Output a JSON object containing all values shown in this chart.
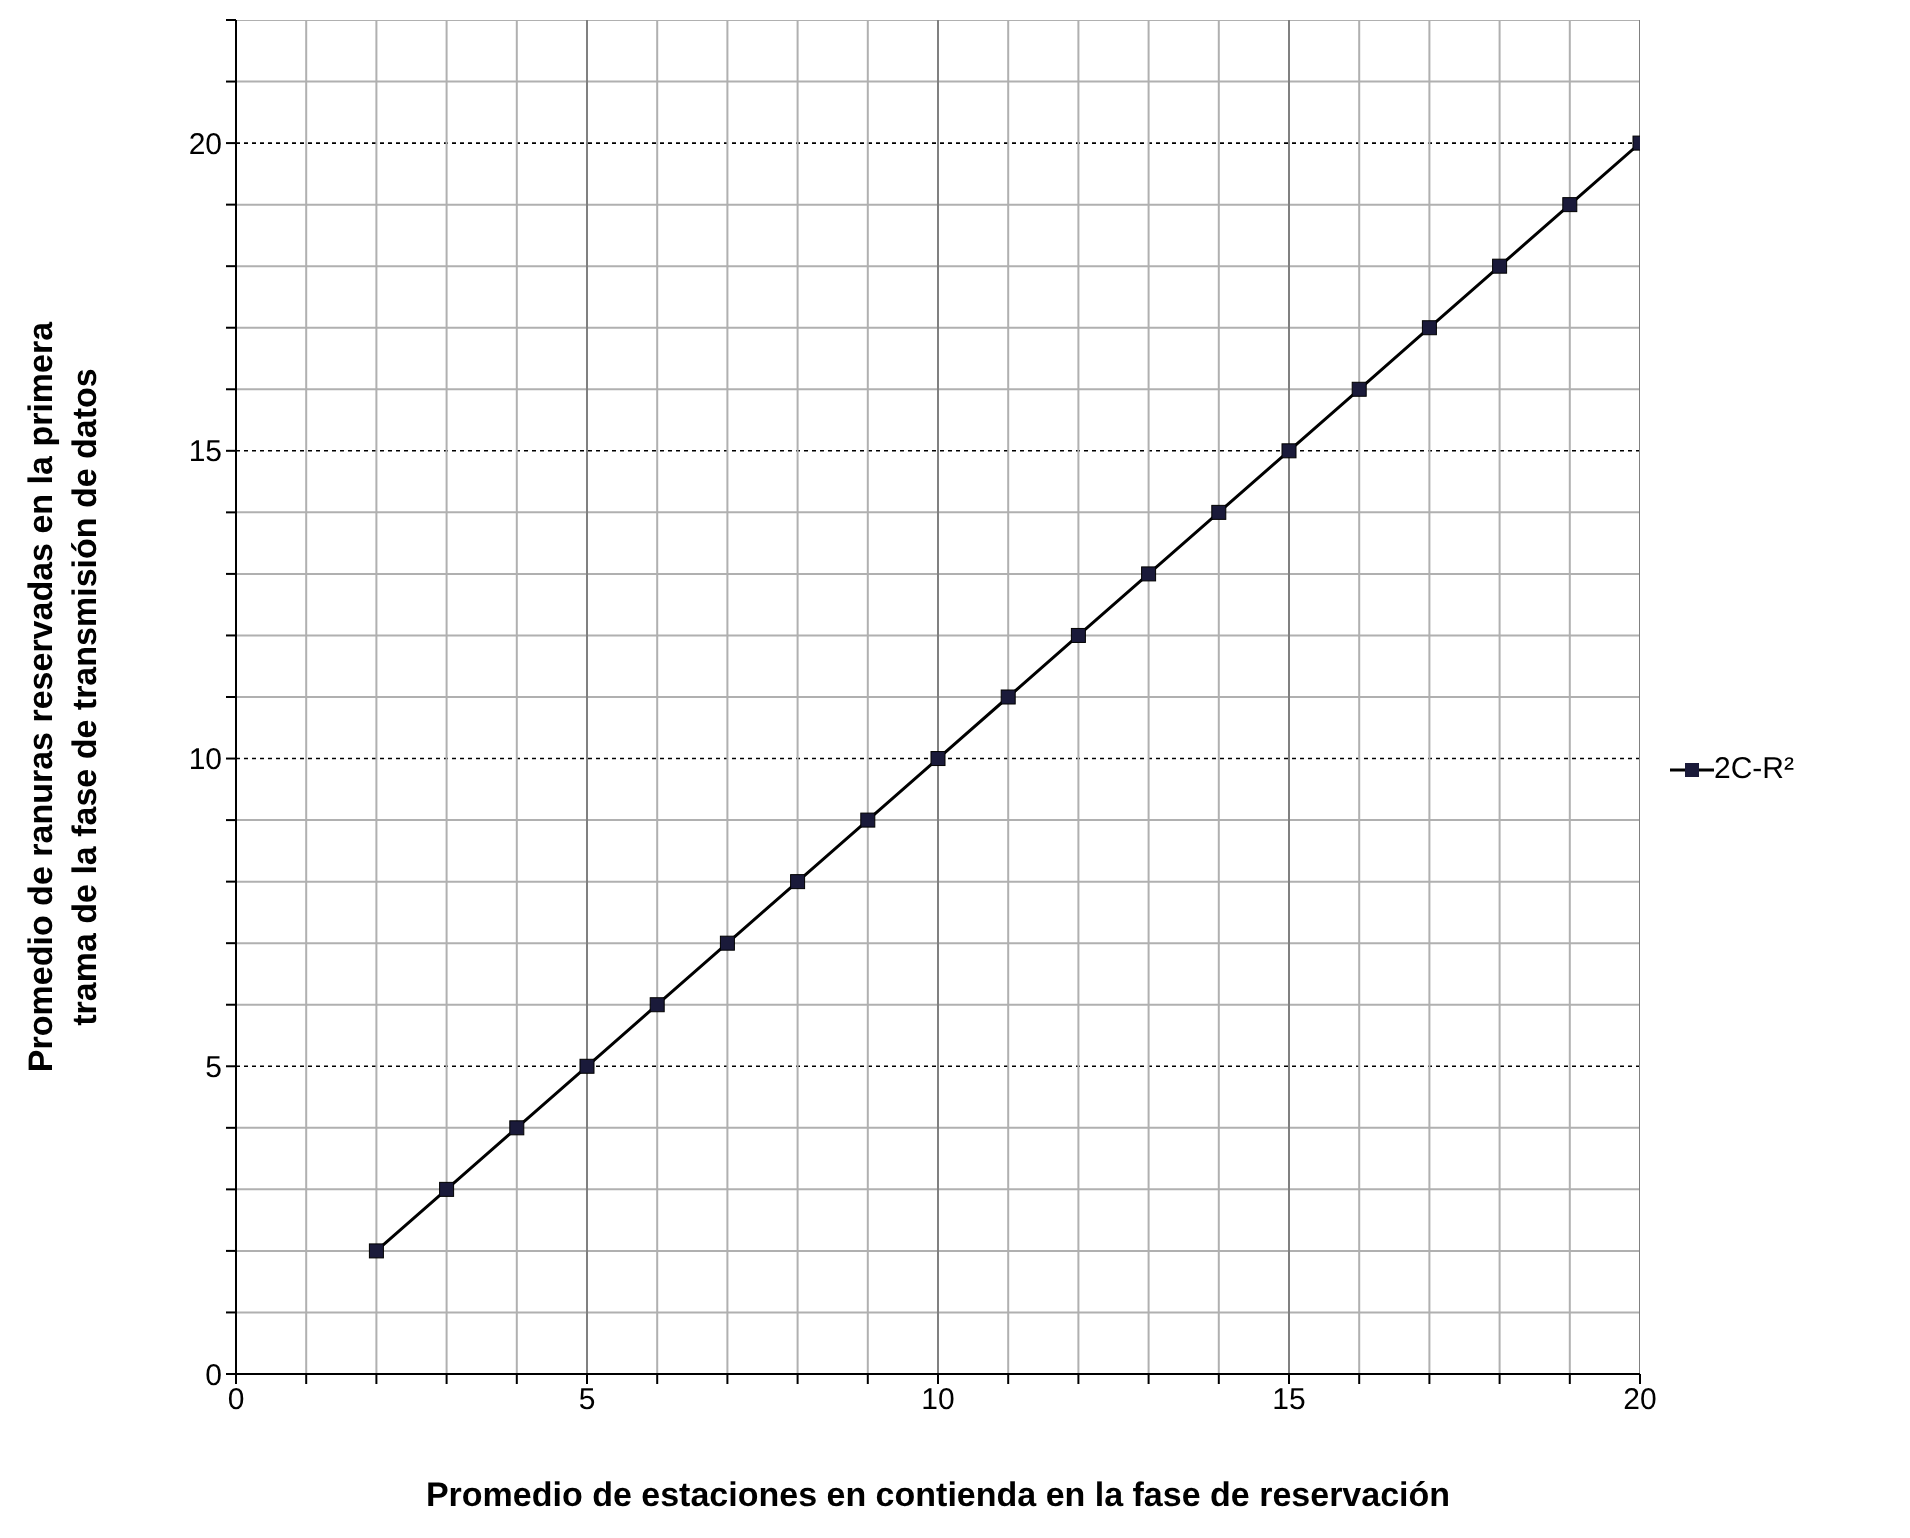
{
  "chart_data": {
    "type": "line",
    "xlabel": "Promedio de estaciones en contienda en la fase de reservación",
    "ylabel": "Promedio de ranuras reservadas en la primera trama de la fase de transmisión de datos",
    "x": [
      2,
      3,
      4,
      5,
      6,
      7,
      8,
      9,
      10,
      11,
      12,
      13,
      14,
      15,
      16,
      17,
      18,
      19,
      20
    ],
    "series": [
      {
        "name": "2C-R²",
        "color": "#000000",
        "values": [
          2,
          3,
          4,
          5,
          6,
          7,
          8,
          9,
          10,
          11,
          12,
          13,
          14,
          15,
          16,
          17,
          18,
          19,
          20
        ]
      }
    ],
    "xlim": [
      0,
      20
    ],
    "ylim": [
      0,
      22
    ],
    "xticks": [
      0,
      {
        "value": 1,
        "label": null
      },
      {
        "value": 2,
        "label": null
      },
      {
        "value": 3,
        "label": null
      },
      {
        "value": 4,
        "label": null
      },
      5,
      {
        "value": 6,
        "label": null
      },
      {
        "value": 7,
        "label": null
      },
      {
        "value": 8,
        "label": null
      },
      {
        "value": 9,
        "label": null
      },
      10,
      {
        "value": 11,
        "label": null
      },
      {
        "value": 12,
        "label": null
      },
      {
        "value": 13,
        "label": null
      },
      {
        "value": 14,
        "label": null
      },
      15,
      {
        "value": 16,
        "label": null
      },
      {
        "value": 17,
        "label": null
      },
      {
        "value": 18,
        "label": null
      },
      {
        "value": 19,
        "label": null
      },
      20
    ],
    "yticks": [
      0,
      {
        "value": 1,
        "label": null
      },
      {
        "value": 2,
        "label": null
      },
      {
        "value": 3,
        "label": null
      },
      {
        "value": 4,
        "label": null
      },
      5,
      {
        "value": 6,
        "label": null
      },
      {
        "value": 7,
        "label": null
      },
      {
        "value": 8,
        "label": null
      },
      {
        "value": 9,
        "label": null
      },
      10,
      {
        "value": 11,
        "label": null
      },
      {
        "value": 12,
        "label": null
      },
      {
        "value": 13,
        "label": null
      },
      {
        "value": 14,
        "label": null
      },
      15,
      {
        "value": 16,
        "label": null
      },
      {
        "value": 17,
        "label": null
      },
      {
        "value": 18,
        "label": null
      },
      {
        "value": 19,
        "label": null
      },
      20,
      {
        "value": 21,
        "label": null
      },
      {
        "value": 22,
        "label": null
      }
    ],
    "grid": true,
    "legend": "right",
    "marker": "square",
    "line_style": "solid"
  }
}
